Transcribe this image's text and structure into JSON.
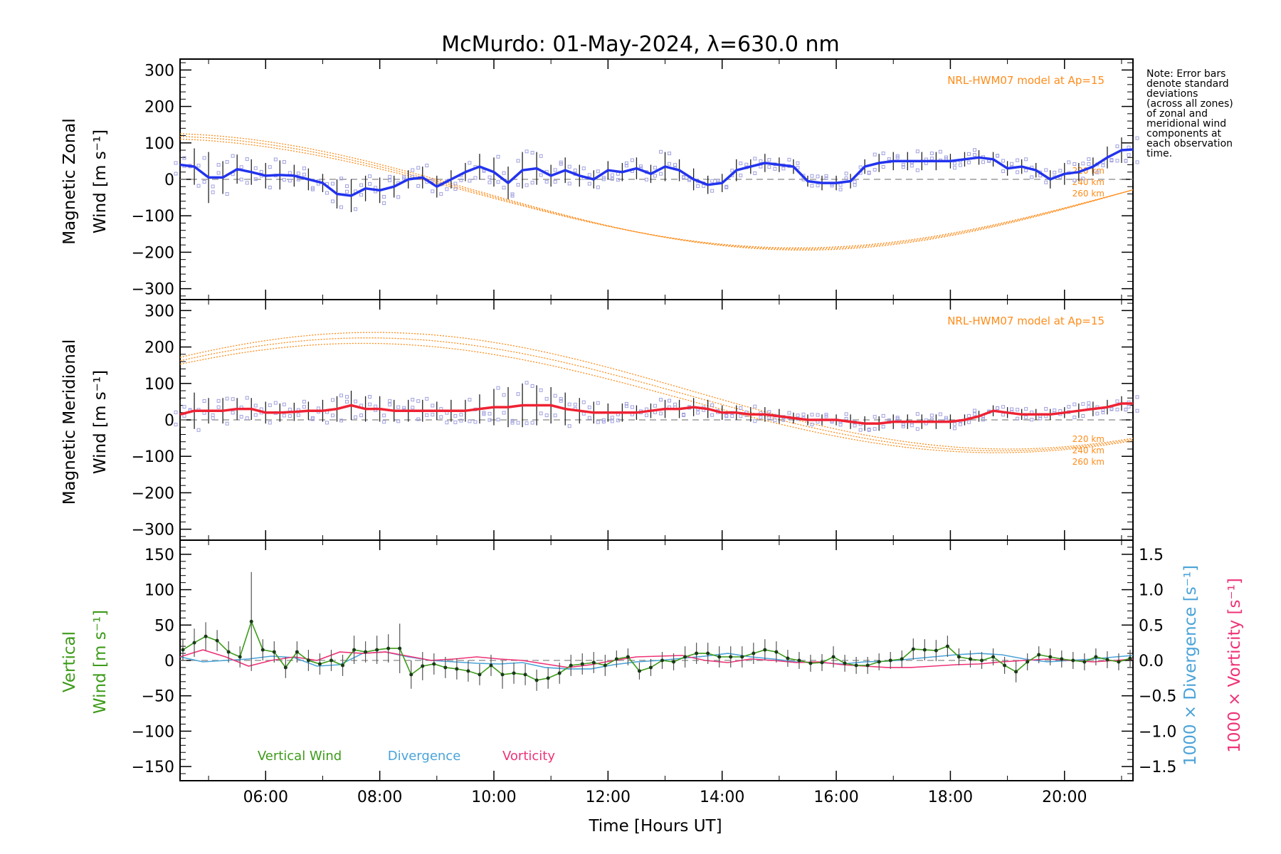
{
  "title": "McMurdo: 01-May-2024, λ=630.0 nm",
  "note": [
    "Note: Error bars",
    "denote standard",
    "deviations",
    "(across all zones)",
    "of zonal and",
    "meridional wind",
    "components at",
    "each observation",
    "time."
  ],
  "colors": {
    "zonal": "#2233ee",
    "meridional": "#ee2233",
    "model": "#ff8c1a",
    "vertical": "#3d9b1a",
    "divergence": "#4aa3d8",
    "vorticity": "#ee3377",
    "scatter": "#a0a0e0",
    "errorbar": "#222222",
    "zero": "#888888"
  },
  "x_axis": {
    "label": "Time [Hours UT]",
    "range_hours": [
      4.5,
      21.2
    ],
    "tick_labels": [
      "06:00",
      "08:00",
      "10:00",
      "12:00",
      "14:00",
      "16:00",
      "18:00",
      "20:00"
    ],
    "tick_hours": [
      6,
      8,
      10,
      12,
      14,
      16,
      18,
      20
    ]
  },
  "chart_data": [
    {
      "type": "line",
      "panel": "zonal",
      "ylabel_line1": "Magnetic Zonal",
      "ylabel_line2": "Wind [m s⁻¹]",
      "ylim": [
        -330,
        330
      ],
      "y_ticks": [
        -300,
        -200,
        -100,
        0,
        100,
        200,
        300
      ],
      "y_tick_labels": [
        "−300",
        "−200",
        "−100",
        "0",
        "100",
        "200",
        "300"
      ],
      "model_label": "NRL-HWM07 model at Ap=15",
      "model_alt_labels": [
        "220 km",
        "240 km",
        "260 km"
      ],
      "x": [
        4.5,
        4.75,
        5.0,
        5.25,
        5.5,
        5.75,
        6.0,
        6.25,
        6.5,
        6.75,
        7.0,
        7.25,
        7.5,
        7.75,
        8.0,
        8.25,
        8.5,
        8.75,
        9.0,
        9.25,
        9.5,
        9.75,
        10.0,
        10.25,
        10.5,
        10.75,
        11.0,
        11.25,
        11.5,
        11.75,
        12.0,
        12.25,
        12.5,
        12.75,
        13.0,
        13.25,
        13.5,
        13.75,
        14.0,
        14.25,
        14.5,
        14.75,
        15.0,
        15.25,
        15.5,
        15.75,
        16.0,
        16.25,
        16.5,
        16.75,
        17.0,
        17.25,
        17.5,
        17.75,
        18.0,
        18.25,
        18.5,
        18.75,
        19.0,
        19.25,
        19.5,
        19.75,
        20.0,
        20.25,
        20.5,
        20.75,
        21.0,
        21.2
      ],
      "values": [
        40,
        35,
        5,
        5,
        28,
        20,
        10,
        12,
        10,
        0,
        -10,
        -40,
        -45,
        -25,
        -30,
        -20,
        0,
        5,
        -20,
        0,
        20,
        35,
        20,
        -10,
        25,
        30,
        10,
        25,
        10,
        0,
        25,
        20,
        30,
        15,
        35,
        25,
        0,
        -15,
        -10,
        25,
        35,
        45,
        40,
        35,
        -5,
        -10,
        -10,
        -5,
        35,
        45,
        50,
        50,
        50,
        50,
        50,
        55,
        60,
        55,
        30,
        35,
        25,
        0,
        15,
        20,
        35,
        60,
        80,
        82
      ],
      "error": [
        35,
        50,
        70,
        45,
        40,
        35,
        35,
        40,
        30,
        30,
        25,
        40,
        45,
        35,
        35,
        30,
        25,
        30,
        30,
        25,
        25,
        35,
        40,
        45,
        50,
        45,
        30,
        35,
        30,
        25,
        25,
        25,
        30,
        25,
        40,
        30,
        30,
        25,
        25,
        30,
        20,
        25,
        20,
        20,
        15,
        20,
        20,
        20,
        20,
        25,
        25,
        25,
        25,
        25,
        20,
        20,
        20,
        20,
        20,
        20,
        20,
        25,
        30,
        25,
        25,
        30,
        35,
        35
      ],
      "series_model": [
        {
          "altitude": "220 km",
          "amplitude": 150,
          "offset": -38
        },
        {
          "altitude": "240 km",
          "amplitude": 155,
          "offset": -36
        },
        {
          "altitude": "260 km",
          "amplitude": 160,
          "offset": -34
        }
      ]
    },
    {
      "type": "line",
      "panel": "meridional",
      "ylabel_line1": "Magnetic Meridional",
      "ylabel_line2": "Wind [m s⁻¹]",
      "ylim": [
        -330,
        330
      ],
      "y_ticks": [
        -300,
        -200,
        -100,
        0,
        100,
        200,
        300
      ],
      "y_tick_labels": [
        "−300",
        "−200",
        "−100",
        "0",
        "100",
        "200",
        "300"
      ],
      "model_label": "NRL-HWM07 model at Ap=15",
      "model_alt_labels": [
        "220 km",
        "240 km",
        "260 km"
      ],
      "x": [
        4.5,
        4.75,
        5.0,
        5.25,
        5.5,
        5.75,
        6.0,
        6.25,
        6.5,
        6.75,
        7.0,
        7.25,
        7.5,
        7.75,
        8.0,
        8.25,
        8.5,
        8.75,
        9.0,
        9.25,
        9.5,
        9.75,
        10.0,
        10.25,
        10.5,
        10.75,
        11.0,
        11.25,
        11.5,
        11.75,
        12.0,
        12.25,
        12.5,
        12.75,
        13.0,
        13.25,
        13.5,
        13.75,
        14.0,
        14.25,
        14.5,
        14.75,
        15.0,
        15.25,
        15.5,
        15.75,
        16.0,
        16.25,
        16.5,
        16.75,
        17.0,
        17.25,
        17.5,
        17.75,
        18.0,
        18.25,
        18.5,
        18.75,
        19.0,
        19.25,
        19.5,
        19.75,
        20.0,
        20.25,
        20.5,
        20.75,
        21.0,
        21.2
      ],
      "values": [
        15,
        25,
        25,
        25,
        30,
        30,
        20,
        20,
        22,
        25,
        25,
        30,
        40,
        30,
        30,
        25,
        25,
        25,
        25,
        25,
        25,
        30,
        35,
        35,
        40,
        40,
        40,
        30,
        25,
        20,
        20,
        20,
        20,
        25,
        30,
        30,
        35,
        30,
        20,
        20,
        15,
        15,
        10,
        5,
        0,
        0,
        0,
        -5,
        -10,
        -10,
        -5,
        -5,
        -5,
        -5,
        -5,
        0,
        10,
        25,
        20,
        15,
        15,
        15,
        20,
        25,
        30,
        35,
        45,
        45
      ],
      "error": [
        40,
        50,
        35,
        35,
        30,
        30,
        30,
        25,
        25,
        25,
        30,
        35,
        40,
        35,
        35,
        30,
        30,
        30,
        25,
        30,
        30,
        40,
        50,
        55,
        60,
        55,
        50,
        45,
        35,
        30,
        25,
        25,
        20,
        20,
        25,
        25,
        25,
        25,
        20,
        20,
        20,
        20,
        20,
        15,
        15,
        15,
        15,
        20,
        20,
        20,
        20,
        20,
        20,
        20,
        20,
        15,
        15,
        15,
        15,
        15,
        15,
        15,
        15,
        20,
        20,
        20,
        20,
        20
      ],
      "series_model": [
        {
          "altitude": "220 km",
          "amplitude": 150,
          "offset": 60
        },
        {
          "altitude": "240 km",
          "amplitude": 155,
          "offset": 70
        },
        {
          "altitude": "260 km",
          "amplitude": 160,
          "offset": 80
        }
      ]
    },
    {
      "type": "line",
      "panel": "vertical",
      "ylabel_line1": "Vertical",
      "ylabel_line2": "Wind [m s⁻¹]",
      "ylim": [
        -170,
        170
      ],
      "y_ticks": [
        -150,
        -100,
        -50,
        0,
        50,
        100,
        150
      ],
      "y_tick_labels": [
        "−150",
        "−100",
        "−50",
        "0",
        "50",
        "100",
        "150"
      ],
      "y2_label_a": "1000 × Divergence [s⁻¹]",
      "y2_label_b": "1000 × Vorticity [s⁻¹]",
      "y2_lim": [
        -1.7,
        1.7
      ],
      "y2_ticks": [
        -1.5,
        -1.0,
        -0.5,
        0.0,
        0.5,
        1.0,
        1.5
      ],
      "y2_tick_labels": [
        "−1.5",
        "−1.0",
        "−0.5",
        "0.0",
        "0.5",
        "1.0",
        "1.5"
      ],
      "legend": [
        "Vertical Wind",
        "Divergence",
        "Vorticity"
      ],
      "series": [
        {
          "name": "Vertical Wind",
          "x": [
            4.55,
            4.75,
            4.95,
            5.15,
            5.35,
            5.55,
            5.75,
            5.95,
            6.15,
            6.35,
            6.55,
            6.75,
            6.95,
            7.15,
            7.35,
            7.55,
            7.75,
            7.95,
            8.15,
            8.35,
            8.55,
            8.75,
            8.95,
            9.15,
            9.35,
            9.55,
            9.75,
            9.95,
            10.15,
            10.35,
            10.55,
            10.75,
            10.95,
            11.15,
            11.35,
            11.55,
            11.75,
            11.95,
            12.15,
            12.35,
            12.55,
            12.75,
            12.95,
            13.15,
            13.35,
            13.55,
            13.75,
            13.95,
            14.15,
            14.35,
            14.55,
            14.75,
            14.95,
            15.15,
            15.35,
            15.55,
            15.75,
            15.95,
            16.15,
            16.35,
            16.55,
            16.75,
            16.95,
            17.15,
            17.35,
            17.55,
            17.75,
            17.95,
            18.15,
            18.35,
            18.55,
            18.75,
            18.95,
            19.15,
            19.35,
            19.55,
            19.75,
            19.95,
            20.15,
            20.35,
            20.55,
            20.75,
            20.95,
            21.15
          ],
          "values": [
            15,
            25,
            34,
            28,
            12,
            5,
            55,
            15,
            12,
            -10,
            12,
            0,
            -5,
            0,
            -7,
            15,
            12,
            15,
            17,
            17,
            -20,
            -8,
            -5,
            -10,
            -12,
            -15,
            -20,
            -7,
            -20,
            -18,
            -20,
            -28,
            -25,
            -18,
            -7,
            -5,
            -3,
            -7,
            2,
            5,
            -15,
            -10,
            0,
            -2,
            5,
            10,
            10,
            5,
            5,
            5,
            10,
            15,
            12,
            3,
            0,
            -4,
            -3,
            5,
            -4,
            -7,
            -7,
            -2,
            0,
            2,
            16,
            15,
            14,
            20,
            5,
            2,
            0,
            5,
            -7,
            -16,
            -2,
            8,
            5,
            2,
            0,
            -2,
            5,
            1,
            -2,
            3
          ],
          "error": [
            15,
            20,
            20,
            15,
            15,
            15,
            70,
            15,
            15,
            15,
            15,
            15,
            15,
            15,
            15,
            20,
            15,
            20,
            20,
            35,
            20,
            20,
            15,
            15,
            15,
            15,
            15,
            15,
            20,
            15,
            15,
            15,
            15,
            15,
            15,
            15,
            15,
            15,
            12,
            12,
            12,
            12,
            12,
            12,
            15,
            15,
            15,
            15,
            15,
            15,
            15,
            15,
            15,
            12,
            12,
            12,
            12,
            15,
            12,
            12,
            12,
            12,
            12,
            12,
            15,
            15,
            15,
            15,
            12,
            12,
            12,
            12,
            12,
            15,
            12,
            12,
            12,
            12,
            12,
            12,
            12,
            12,
            12,
            12
          ]
        },
        {
          "name": "Divergence",
          "x": [
            4.5,
            4.9,
            5.3,
            5.7,
            6.1,
            6.5,
            6.9,
            7.3,
            7.7,
            8.1,
            8.5,
            8.9,
            9.3,
            9.7,
            10.1,
            10.5,
            10.9,
            11.3,
            11.7,
            12.1,
            12.5,
            12.9,
            13.3,
            13.7,
            14.1,
            14.5,
            14.9,
            15.3,
            15.7,
            16.1,
            16.5,
            16.9,
            17.3,
            17.7,
            18.1,
            18.5,
            18.9,
            19.3,
            19.7,
            20.1,
            20.5,
            20.9,
            21.2
          ],
          "values": [
            0.05,
            -0.02,
            0.0,
            0.02,
            0.06,
            0.04,
            -0.08,
            -0.06,
            0.1,
            0.12,
            0.05,
            0.0,
            -0.02,
            -0.04,
            -0.05,
            -0.03,
            -0.1,
            -0.12,
            -0.12,
            -0.06,
            -0.02,
            0.0,
            0.03,
            0.06,
            0.1,
            0.05,
            0.02,
            -0.02,
            -0.03,
            -0.05,
            -0.02,
            -0.01,
            0.02,
            0.05,
            0.08,
            0.1,
            0.08,
            0.02,
            -0.02,
            0.0,
            0.02,
            0.05,
            0.07
          ]
        },
        {
          "name": "Vorticity",
          "x": [
            4.5,
            4.9,
            5.3,
            5.7,
            6.1,
            6.5,
            6.9,
            7.3,
            7.7,
            8.1,
            8.5,
            8.9,
            9.3,
            9.7,
            10.1,
            10.5,
            10.9,
            11.3,
            11.7,
            12.1,
            12.5,
            12.9,
            13.3,
            13.7,
            14.1,
            14.5,
            14.9,
            15.3,
            15.7,
            16.1,
            16.5,
            16.9,
            17.3,
            17.7,
            18.1,
            18.5,
            18.9,
            19.3,
            19.7,
            20.1,
            20.5,
            20.9,
            21.2
          ],
          "values": [
            0.05,
            0.15,
            0.05,
            -0.08,
            0.0,
            0.05,
            0.0,
            0.12,
            0.1,
            0.12,
            0.06,
            0.0,
            0.02,
            0.05,
            0.02,
            0.0,
            -0.05,
            -0.1,
            -0.06,
            0.0,
            0.05,
            0.06,
            0.07,
            0.0,
            -0.03,
            0.02,
            0.0,
            -0.03,
            -0.02,
            -0.06,
            -0.08,
            -0.1,
            -0.1,
            -0.08,
            -0.06,
            -0.05,
            -0.02,
            0.0,
            0.02,
            0.0,
            -0.02,
            0.0,
            0.02
          ]
        }
      ]
    }
  ]
}
